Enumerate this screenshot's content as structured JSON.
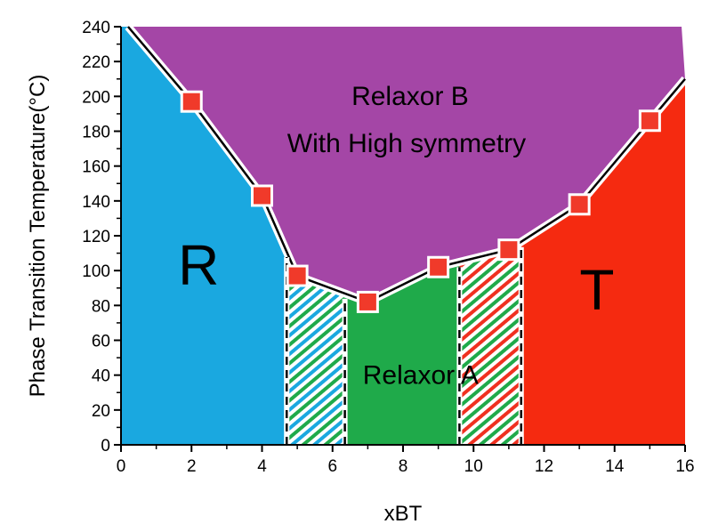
{
  "chart_data": {
    "type": "area",
    "title": "",
    "xlabel": "xBT",
    "ylabel": "Phase Transition Temperature(°C)",
    "xlim": [
      0,
      16
    ],
    "ylim": [
      0,
      240
    ],
    "x_ticks": [
      "0",
      "2",
      "4",
      "6",
      "8",
      "10",
      "12",
      "14",
      "16"
    ],
    "y_ticks": [
      "0",
      "20",
      "40",
      "60",
      "80",
      "100",
      "120",
      "140",
      "160",
      "180",
      "200",
      "220",
      "240"
    ],
    "grid": false,
    "transition_points": [
      {
        "x": 2,
        "y": 197
      },
      {
        "x": 4,
        "y": 143
      },
      {
        "x": 5,
        "y": 97
      },
      {
        "x": 7,
        "y": 82
      },
      {
        "x": 9,
        "y": 102
      },
      {
        "x": 11,
        "y": 112
      },
      {
        "x": 13,
        "y": 138
      },
      {
        "x": 15,
        "y": 186
      }
    ],
    "boundary_line": [
      {
        "x": 0.2,
        "y": 240
      },
      {
        "x": 2,
        "y": 197
      },
      {
        "x": 4,
        "y": 143
      },
      {
        "x": 5,
        "y": 97
      },
      {
        "x": 7,
        "y": 82
      },
      {
        "x": 9,
        "y": 102
      },
      {
        "x": 11,
        "y": 112
      },
      {
        "x": 13,
        "y": 138
      },
      {
        "x": 15,
        "y": 186
      },
      {
        "x": 16,
        "y": 210
      }
    ],
    "phase_boundaries_dashed": [
      4.7,
      6.35,
      9.6,
      11.35
    ],
    "regions": [
      {
        "name": "R",
        "label": "R",
        "color": "#1aa8e0",
        "x_range": [
          0,
          4.7
        ]
      },
      {
        "name": "mixed-R-A",
        "label": "",
        "color": "#1aa8e0",
        "hatch_color2": "#1faa4a",
        "x_range": [
          4.7,
          6.35
        ]
      },
      {
        "name": "Relaxor A",
        "label": "Relaxor A",
        "color": "#1faa4a",
        "x_range": [
          6.35,
          9.6
        ]
      },
      {
        "name": "mixed-A-T",
        "label": "",
        "color": "#f03020",
        "hatch_color2": "#1faa4a",
        "x_range": [
          9.6,
          11.35
        ]
      },
      {
        "name": "T",
        "label": "T",
        "color": "#f52a10",
        "x_range": [
          11.35,
          16
        ]
      },
      {
        "name": "Relaxor B",
        "label": "Relaxor B",
        "label_line2": "With High symmetry",
        "color": "#a446a6"
      }
    ],
    "marker_color": "#f03a2a"
  }
}
